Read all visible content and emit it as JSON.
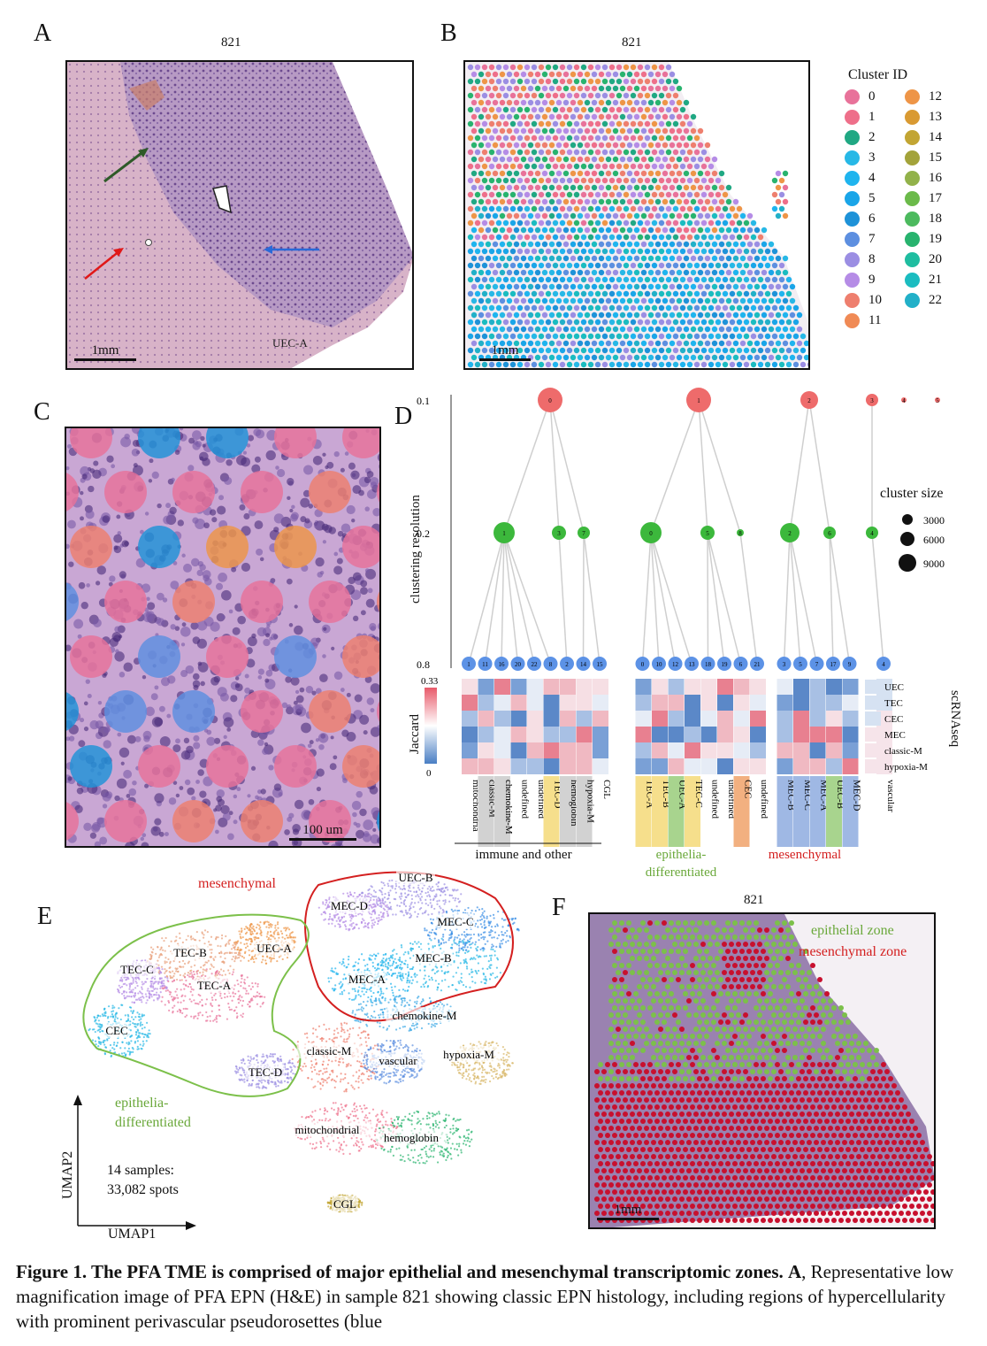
{
  "panelA": {
    "letter": "A",
    "title": "821",
    "scalebar": "1mm"
  },
  "panelB": {
    "letter": "B",
    "title": "821",
    "scalebar": "1mm",
    "legend_title": "Cluster ID",
    "clusters": [
      {
        "id": "0",
        "color": "#e8729a"
      },
      {
        "id": "1",
        "color": "#ee6f8a"
      },
      {
        "id": "2",
        "color": "#20a883"
      },
      {
        "id": "3",
        "color": "#27b8e6"
      },
      {
        "id": "4",
        "color": "#1fb4ee"
      },
      {
        "id": "5",
        "color": "#1aa5e8"
      },
      {
        "id": "6",
        "color": "#1e92d8"
      },
      {
        "id": "7",
        "color": "#5d8fe0"
      },
      {
        "id": "8",
        "color": "#9b8ee3"
      },
      {
        "id": "9",
        "color": "#b58ce6"
      },
      {
        "id": "10",
        "color": "#ee7f6e"
      },
      {
        "id": "11",
        "color": "#f08a55"
      },
      {
        "id": "12",
        "color": "#ee9547"
      },
      {
        "id": "13",
        "color": "#d99a32"
      },
      {
        "id": "14",
        "color": "#c2a533"
      },
      {
        "id": "15",
        "color": "#a3a33a"
      },
      {
        "id": "16",
        "color": "#92b24a"
      },
      {
        "id": "17",
        "color": "#6bba4a"
      },
      {
        "id": "18",
        "color": "#4cba5e"
      },
      {
        "id": "19",
        "color": "#28b36e"
      },
      {
        "id": "20",
        "color": "#1fbda0"
      },
      {
        "id": "21",
        "color": "#1bbcc0"
      },
      {
        "id": "22",
        "color": "#22b0c8"
      }
    ]
  },
  "panelC": {
    "letter": "C",
    "scalebar": "100 um"
  },
  "panelD": {
    "letter": "D",
    "y_axis_label": "clustering resolution",
    "resolutions": [
      "0.1",
      "0.2",
      "0.8"
    ],
    "size_legend_title": "cluster size",
    "size_legend": [
      "3000",
      "6000",
      "9000"
    ],
    "jaccard_label": "Jaccard",
    "jaccard_ticks": [
      "0.33",
      "0"
    ],
    "scrna_label": "scRNAseq",
    "scrna_rows": [
      "UEC",
      "TEC",
      "CEC",
      "MEC",
      "classic-M",
      "hypoxia-M"
    ],
    "res01_nodes": [
      "0",
      "1",
      "2",
      "3",
      "4",
      "5"
    ],
    "res02_nodes": [
      "1",
      "3",
      "7",
      "0",
      "5",
      "8",
      "2",
      "6",
      "4"
    ],
    "res08_nodes": [
      "1",
      "11",
      "16",
      "20",
      "22",
      "8",
      "2",
      "14",
      "15",
      "0",
      "10",
      "12",
      "13",
      "18",
      "19",
      "6",
      "21",
      "3",
      "5",
      "7",
      "17",
      "9",
      "4"
    ],
    "columns": [
      "mitochondria",
      "classic-M",
      "chemokine-M",
      "undefined",
      "undefined",
      "TEC-D",
      "hemoglobin",
      "hypoxia-M",
      "CGL",
      "TEC-A",
      "TEC-B",
      "UEC-A",
      "TEC-C",
      "undefined",
      "undefined",
      "CEC",
      "undefined",
      "MEC-B",
      "MEC-C",
      "MEC-A",
      "UEC-B",
      "MEC-D",
      "vascular"
    ],
    "groups": [
      {
        "label": "immune and other",
        "color": "#111111"
      },
      {
        "label": "epithelia-\ndifferentiated",
        "color": "#6aa83a"
      },
      {
        "label": "mesenchymal",
        "color": "#d42020"
      }
    ]
  },
  "panelE": {
    "letter": "E",
    "mesenchymal_label": "mesenchymal",
    "epithelia_label": "epithelia-\ndifferentiated",
    "clusters": [
      "UEC-B",
      "MEC-D",
      "MEC-C",
      "MEC-B",
      "MEC-A",
      "UEC-A",
      "TEC-B",
      "TEC-C",
      "TEC-A",
      "CEC",
      "TEC-D",
      "chemokine-M",
      "classic-M",
      "vascular",
      "hypoxia-M",
      "mitochondrial",
      "hemoglobin",
      "CGL"
    ],
    "note": "14 samples:\n33,082 spots",
    "xlabel": "UMAP1",
    "ylabel": "UMAP2"
  },
  "panelF": {
    "letter": "F",
    "title": "821",
    "scalebar": "1mm",
    "epithelial_label": "epithelial zone",
    "mesenchymal_label": "mesenchymal zone",
    "epithelial_color": "#7cc04a",
    "mesenchymal_color": "#c8102e"
  },
  "caption": {
    "bold": "Figure 1. The PFA TME is comprised of major epithelial and mesenchymal transcriptomic zones.",
    "bold_A": "A",
    "text": ", Representative low magnification image of PFA EPN (H&E) in sample 821 showing classic EPN histology, including regions of hypercellularity with prominent perivascular pseudorosettes (blue"
  }
}
